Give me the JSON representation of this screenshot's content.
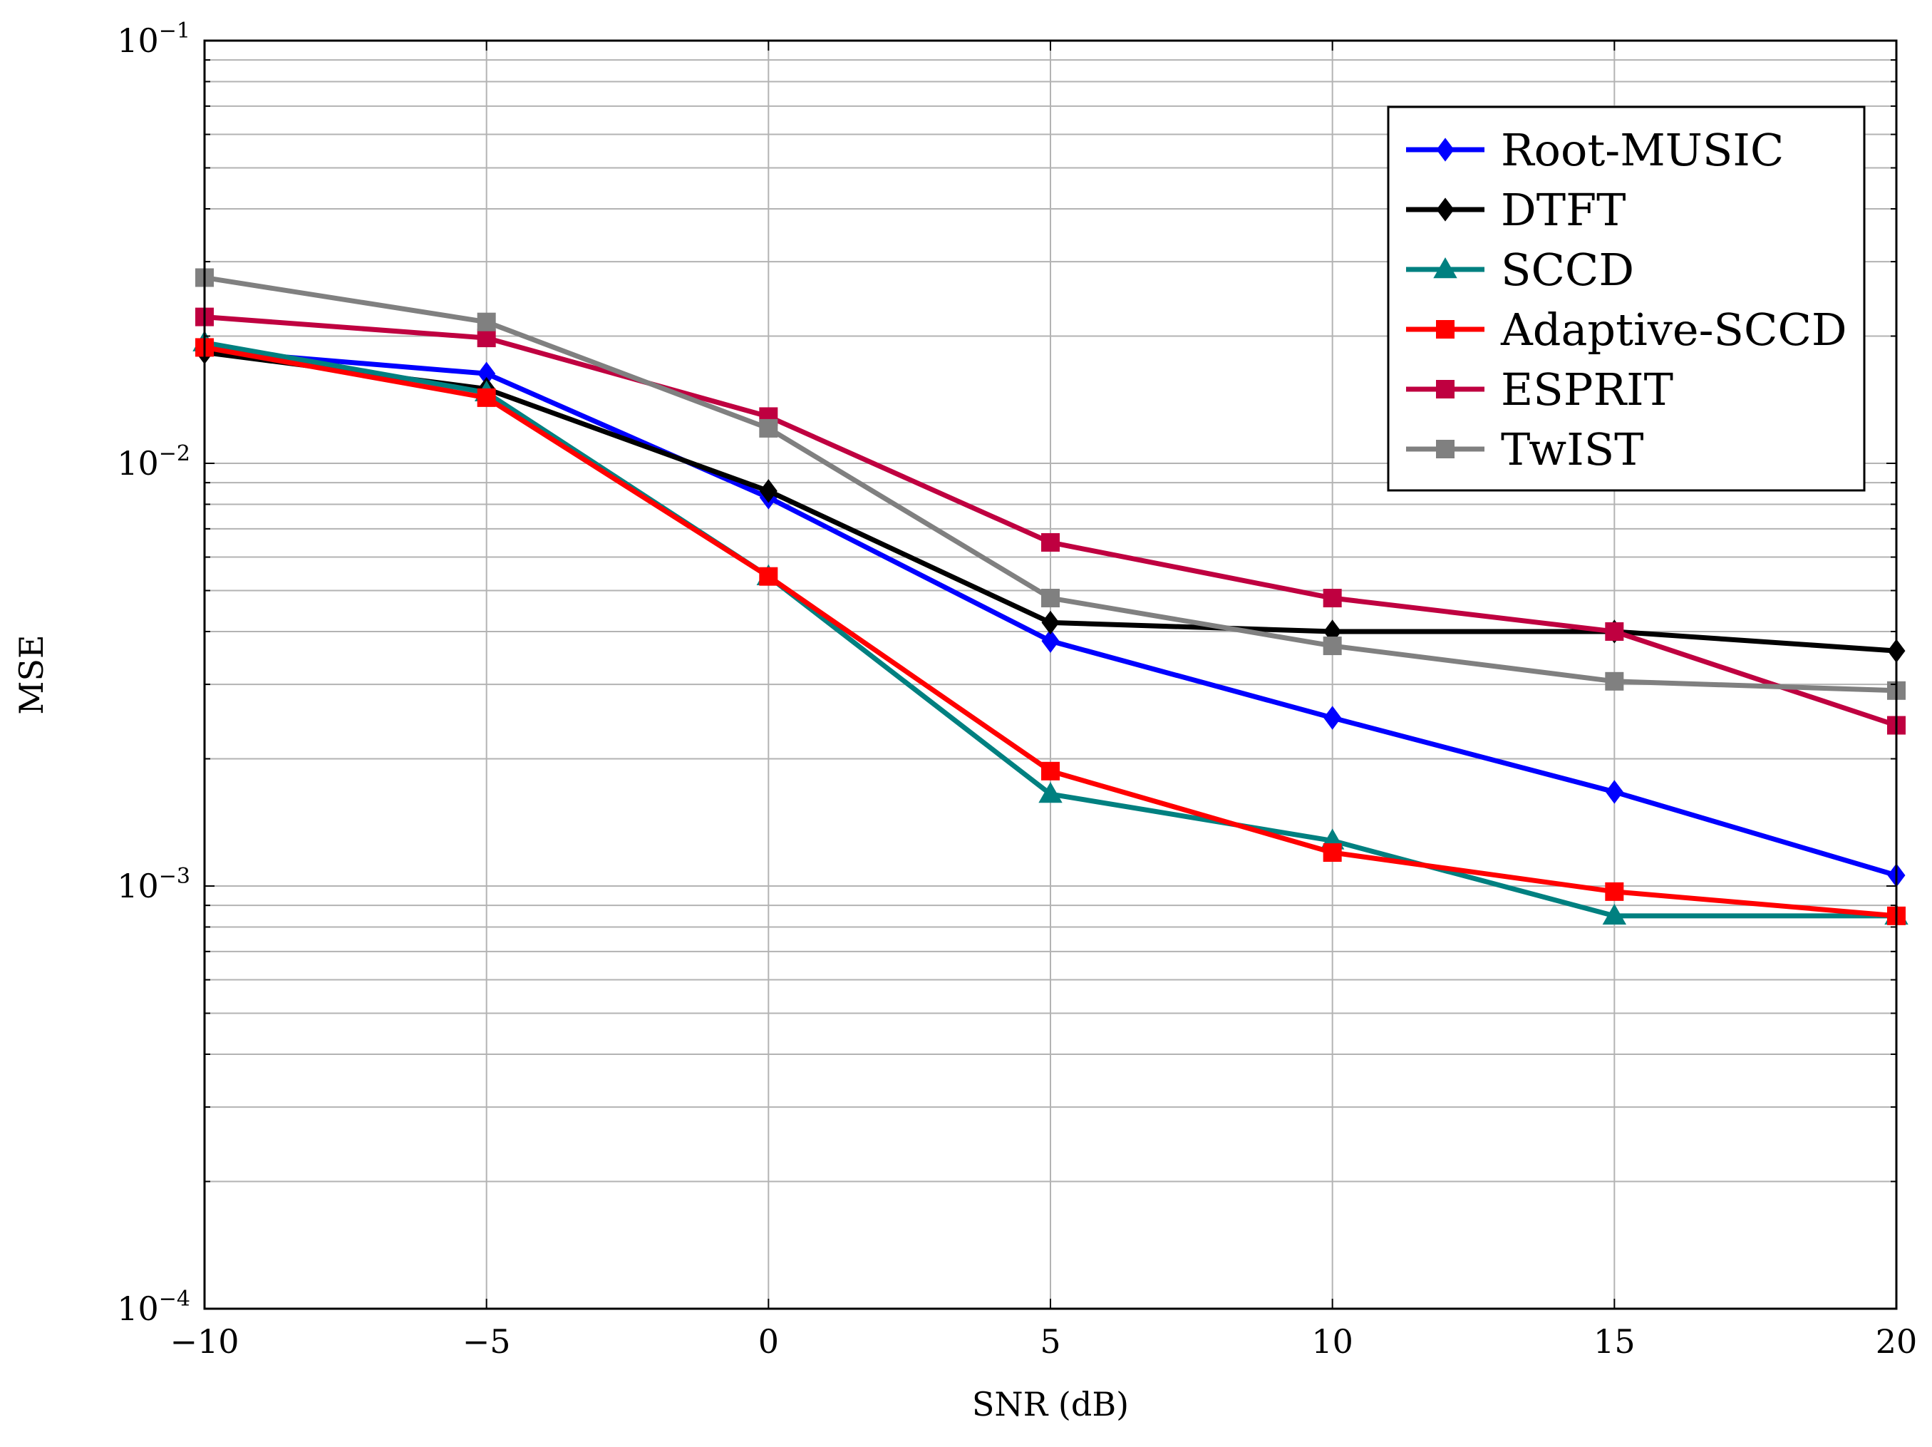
{
  "chart_data": {
    "type": "line",
    "title": "",
    "xlabel": "SNR (dB)",
    "ylabel": "MSE",
    "x": [
      -10,
      -5,
      0,
      5,
      10,
      15,
      20
    ],
    "xlim": [
      -10,
      20
    ],
    "ylim": [
      0.0001,
      0.1
    ],
    "yscale": "log",
    "grid": true,
    "legend_position": "top-right",
    "x_tick_labels": [
      "−10",
      "−5",
      "0",
      "5",
      "10",
      "15",
      "20"
    ],
    "y_tick_labels": [
      {
        "base": "10",
        "exp": "−4",
        "value": 0.0001
      },
      {
        "base": "10",
        "exp": "−3",
        "value": 0.001
      },
      {
        "base": "10",
        "exp": "−2",
        "value": 0.01
      },
      {
        "base": "10",
        "exp": "−1",
        "value": 0.1
      }
    ],
    "series": [
      {
        "name": "Root-MUSIC",
        "color": "#0000ff",
        "marker": "diamond",
        "values": [
          0.0185,
          0.0163,
          0.0083,
          0.0038,
          0.0025,
          0.00167,
          0.00106
        ]
      },
      {
        "name": "DTFT",
        "color": "#000000",
        "marker": "diamond",
        "values": [
          0.0183,
          0.015,
          0.0086,
          0.0042,
          0.004,
          0.004,
          0.0036
        ]
      },
      {
        "name": "SCCD",
        "color": "#008080",
        "marker": "triangle",
        "values": [
          0.0193,
          0.0147,
          0.0054,
          0.00165,
          0.00128,
          0.00085,
          0.00085
        ]
      },
      {
        "name": "Adaptive-SCCD",
        "color": "#ff0000",
        "marker": "square",
        "values": [
          0.0188,
          0.0143,
          0.0054,
          0.00187,
          0.0012,
          0.00097,
          0.00085
        ]
      },
      {
        "name": "ESPRIT",
        "color": "#bf0040",
        "marker": "square",
        "values": [
          0.0222,
          0.0198,
          0.0129,
          0.0065,
          0.0048,
          0.004,
          0.0024
        ]
      },
      {
        "name": "TwIST",
        "color": "#808080",
        "marker": "square",
        "values": [
          0.0275,
          0.0216,
          0.0121,
          0.0048,
          0.0037,
          0.00305,
          0.0029
        ]
      }
    ]
  }
}
